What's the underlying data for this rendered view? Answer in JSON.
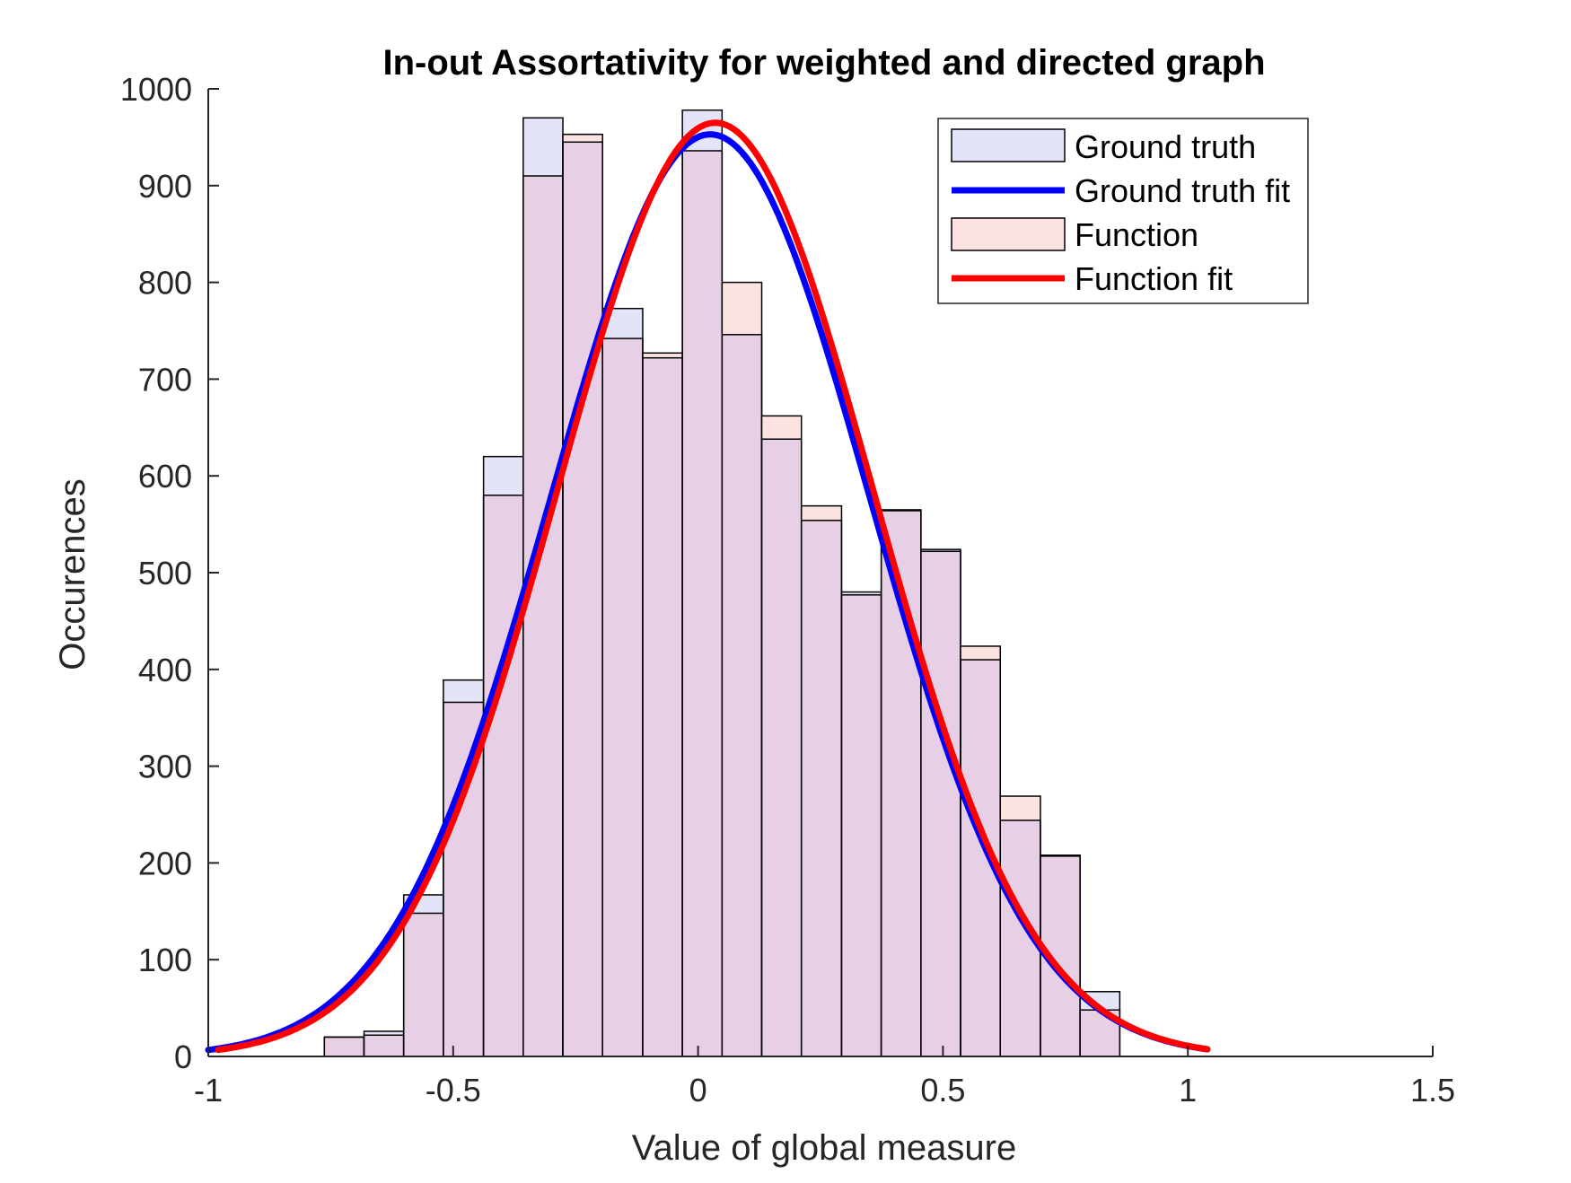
{
  "chart_data": {
    "type": "bar",
    "title": "In-out Assortativity for weighted and directed graph",
    "xlabel": "Value of global measure",
    "ylabel": "Occurences",
    "xlim": [
      -1,
      1.5
    ],
    "ylim": [
      0,
      1000
    ],
    "xticks": [
      -1,
      -0.5,
      0,
      0.5,
      1,
      1.5
    ],
    "xtick_labels": [
      "-1",
      "-0.5",
      "0",
      "0.5",
      "1",
      "1.5"
    ],
    "yticks": [
      0,
      100,
      200,
      300,
      400,
      500,
      600,
      700,
      800,
      900,
      1000
    ],
    "ytick_labels": [
      "0",
      "100",
      "200",
      "300",
      "400",
      "500",
      "600",
      "700",
      "800",
      "900",
      "1000"
    ],
    "grid": false,
    "legend_position": "top-right",
    "bin_edges": [
      -0.763,
      -0.682,
      -0.601,
      -0.52,
      -0.438,
      -0.357,
      -0.276,
      -0.195,
      -0.113,
      -0.032,
      0.049,
      0.13,
      0.211,
      0.293,
      0.374,
      0.455,
      0.536,
      0.617,
      0.699,
      0.78,
      0.861
    ],
    "series": [
      {
        "name": "Ground truth",
        "style": "histogram",
        "color": "#e3e4f8",
        "edge": "#000000",
        "values": [
          20,
          26,
          167,
          389,
          620,
          970,
          945,
          773,
          722,
          978,
          746,
          638,
          554,
          480,
          565,
          524,
          410,
          244,
          208,
          67
        ]
      },
      {
        "name": "Ground truth fit",
        "style": "line",
        "color": "#0000ff",
        "fit": {
          "amplitude": 953,
          "mean": 0.025,
          "sigma": 0.3255
        },
        "x_range": [
          -1.0,
          1.04
        ]
      },
      {
        "name": "Function",
        "style": "histogram",
        "color": "#fde2e2",
        "edge": "#000000",
        "values": [
          20,
          22,
          148,
          366,
          580,
          910,
          953,
          742,
          727,
          936,
          800,
          662,
          569,
          477,
          564,
          522,
          424,
          269,
          207,
          48
        ]
      },
      {
        "name": "Function fit",
        "style": "line",
        "color": "#ff0000",
        "fit": {
          "amplitude": 965,
          "mean": 0.035,
          "sigma": 0.3225
        },
        "x_range": [
          -0.98,
          1.04
        ]
      }
    ],
    "overlap_color": "#e7d0e5"
  }
}
